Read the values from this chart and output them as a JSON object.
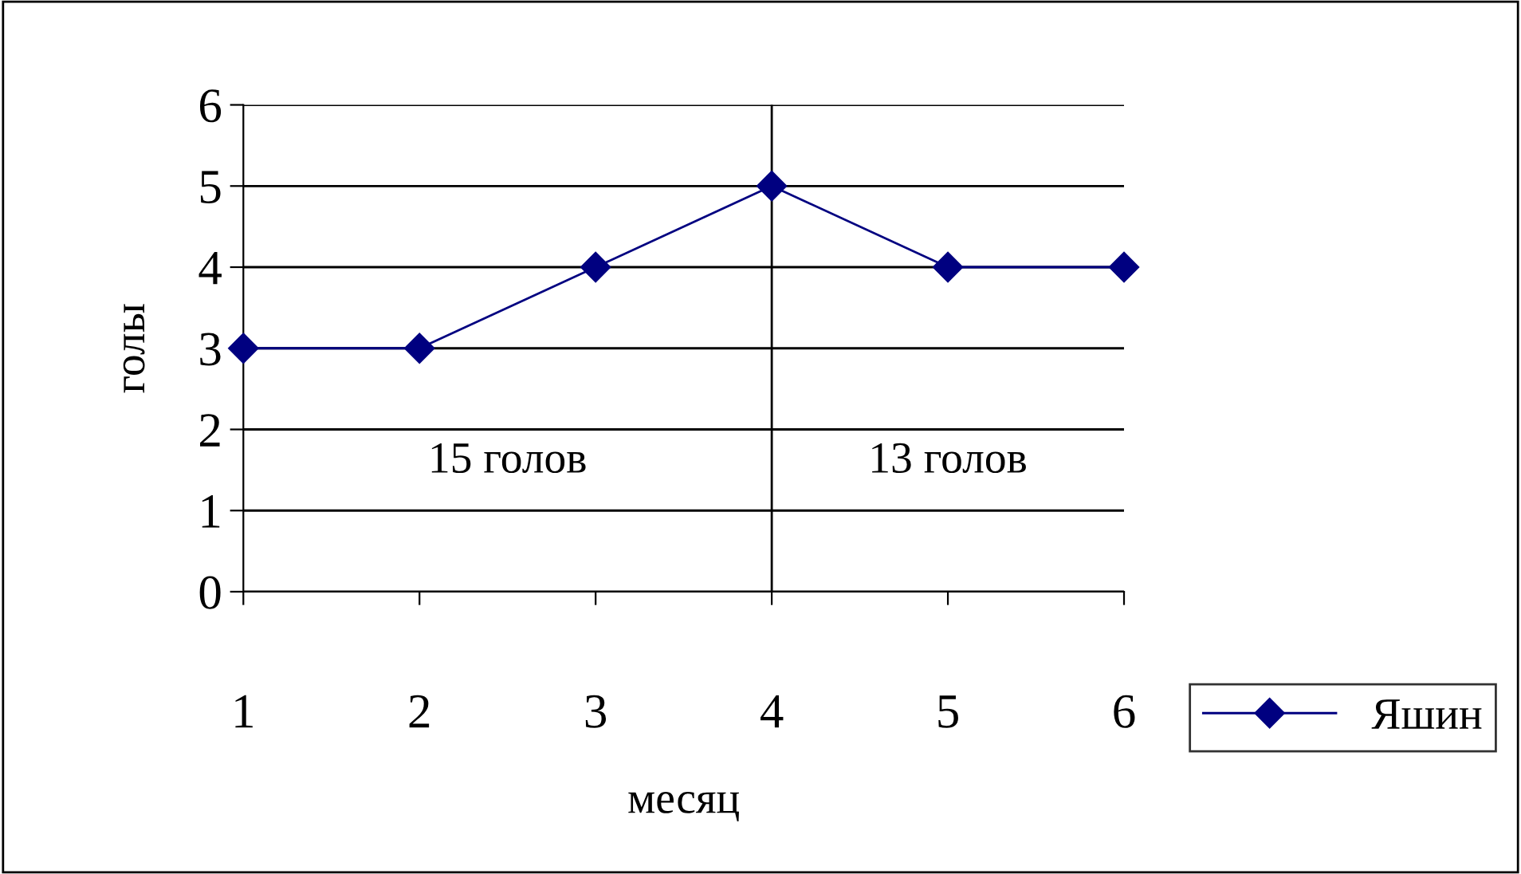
{
  "chart_data": {
    "type": "line",
    "xlabel": "месяц",
    "ylabel": "голы",
    "categories": [
      "1",
      "2",
      "3",
      "4",
      "5",
      "6"
    ],
    "series": [
      {
        "name": "Яшин",
        "color": "#000080",
        "values": [
          3,
          3,
          4,
          5,
          4,
          4
        ]
      }
    ],
    "ylim": [
      0,
      6
    ],
    "yticks": [
      0,
      1,
      2,
      3,
      4,
      5,
      6
    ],
    "grid": "y",
    "marker": "diamond",
    "line_style": "solid",
    "legend": "bottom right",
    "ref_lines": [
      {
        "axis": "x",
        "value": "4",
        "color": "#000000"
      }
    ],
    "annotations": [
      "15 голов",
      "13 голов"
    ]
  }
}
